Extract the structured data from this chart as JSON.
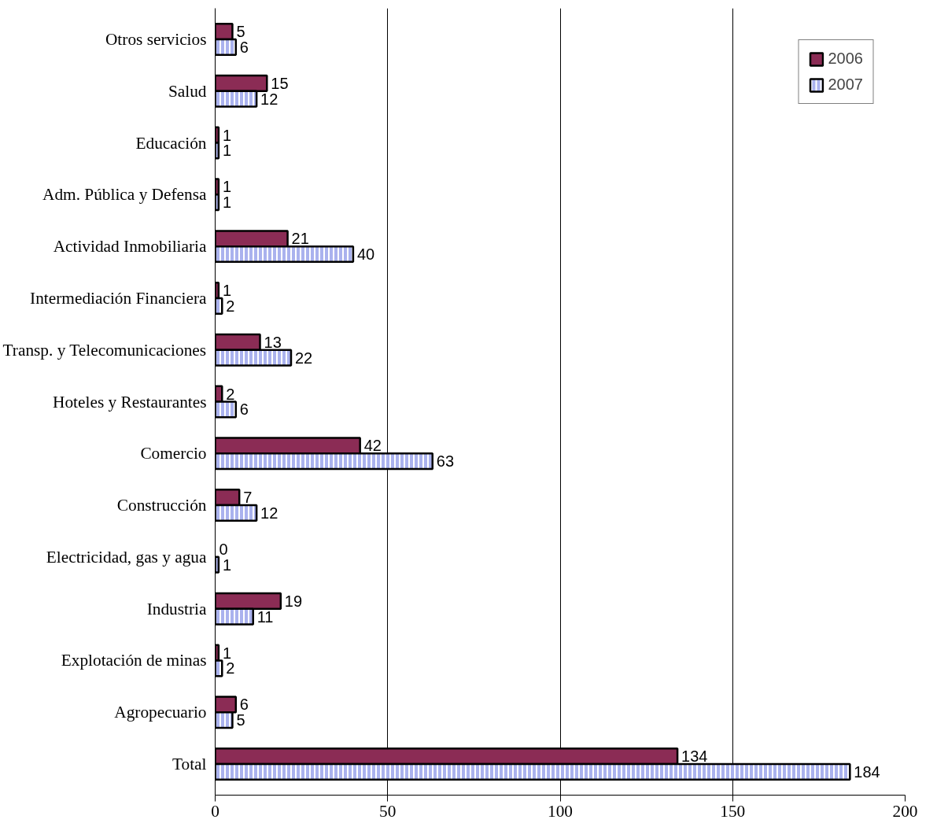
{
  "chart_data": {
    "type": "bar",
    "orientation": "horizontal",
    "categories": [
      "Otros servicios",
      "Salud",
      "Educación",
      "Adm. Pública y Defensa",
      "Actividad Inmobiliaria",
      "Intermediación Financiera",
      "Transp. y Telecomunicaciones",
      "Hoteles y Restaurantes",
      "Comercio",
      "Construcción",
      "Electricidad, gas y agua",
      "Industria",
      "Explotación de minas",
      "Agropecuario",
      "Total"
    ],
    "series": [
      {
        "name": "2006",
        "color": "#8b2c55",
        "values": [
          5,
          15,
          1,
          1,
          21,
          1,
          13,
          2,
          42,
          7,
          0,
          19,
          1,
          6,
          134
        ]
      },
      {
        "name": "2007",
        "color": "#aab2ee",
        "values": [
          6,
          12,
          1,
          1,
          40,
          2,
          22,
          6,
          63,
          12,
          1,
          11,
          2,
          5,
          184
        ]
      }
    ],
    "xlim": [
      0,
      200
    ],
    "xticks": [
      0,
      50,
      100,
      150,
      200
    ],
    "grid": "x",
    "legend": "top right",
    "data_labels": true
  }
}
